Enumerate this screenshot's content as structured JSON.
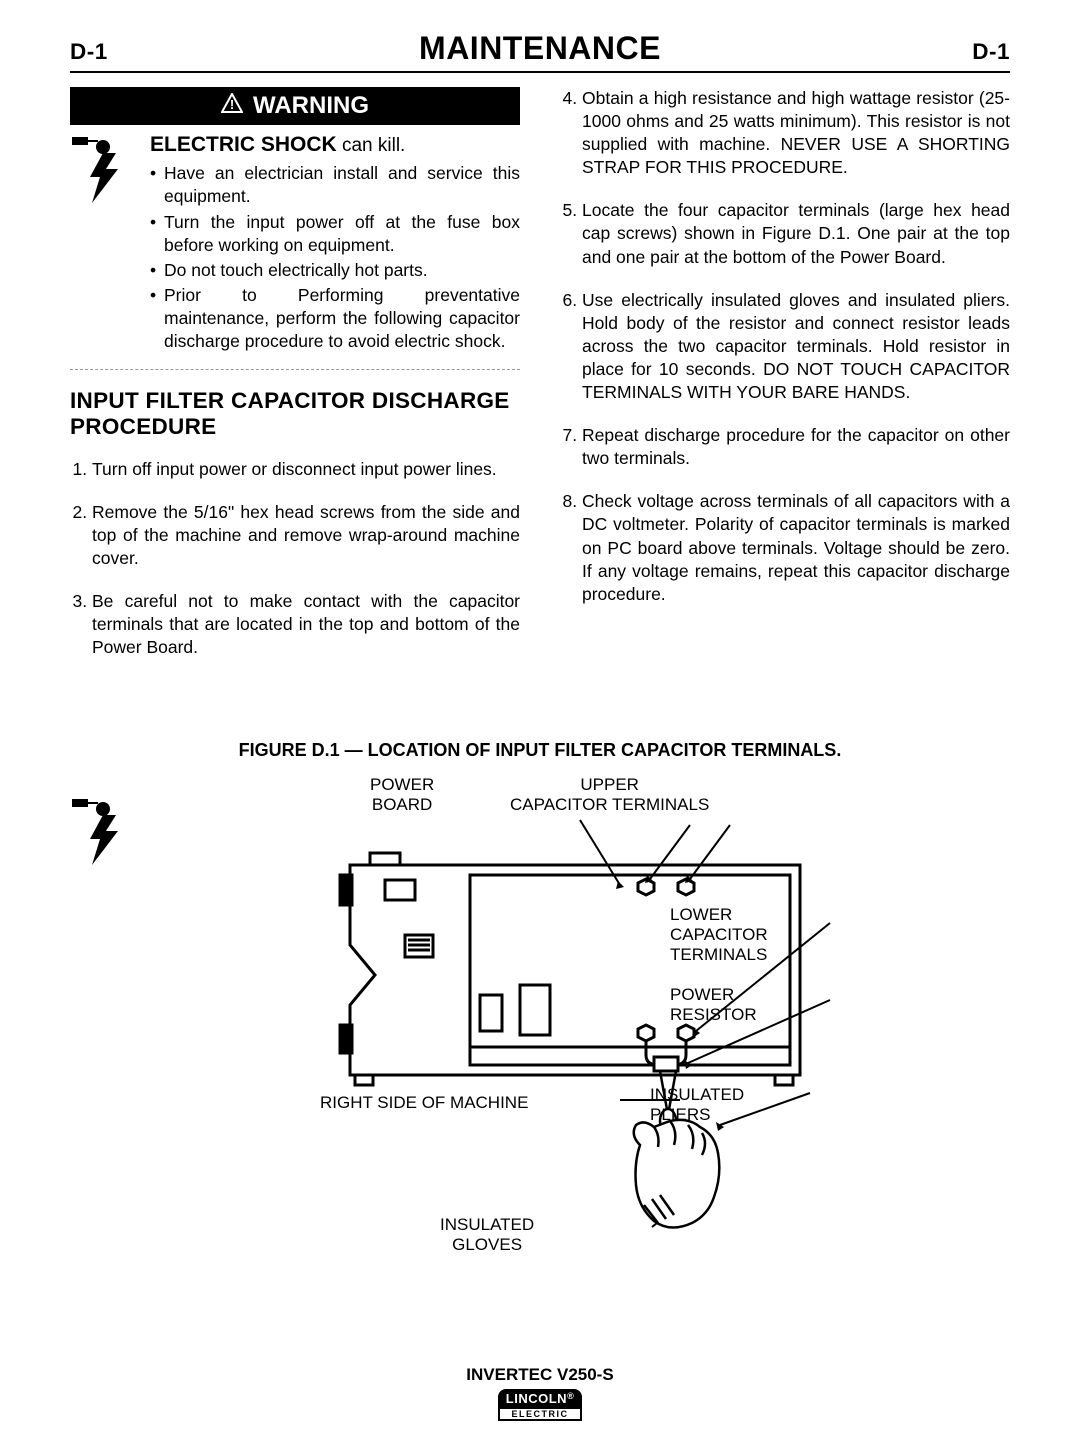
{
  "header": {
    "left_code": "D-1",
    "title": "MAINTENANCE",
    "right_code": "D-1"
  },
  "warning": {
    "bar_text": "WARNING",
    "shock_title_bold": "ELECTRIC SHOCK",
    "shock_title_rest": " can kill.",
    "bullets": [
      "Have an electrician install and service this equipment.",
      "Turn the input power off at the fuse box before working on equipment.",
      "Do not touch electrically hot parts.",
      "Prior to Performing preventative maintenance, perform the following capacitor discharge procedure to avoid electric shock."
    ]
  },
  "procedure": {
    "title": "INPUT FILTER CAPACITOR DISCHARGE PROCEDURE",
    "steps_left": [
      "Turn off input power or disconnect input power lines.",
      "Remove the 5/16\" hex head screws from the side and top of the machine and remove wrap-around machine cover.",
      "Be careful not to make contact with the capacitor terminals that are located in the top and bottom of the Power Board."
    ],
    "steps_right": [
      "Obtain a high resistance and high wattage resistor (25-1000 ohms and 25 watts minimum). This resistor is not supplied with machine. NEVER USE A SHORTING STRAP FOR THIS PROCEDURE.",
      "Locate the four capacitor terminals (large hex head cap screws) shown in Figure D.1.  One pair at the top and one pair at the bottom of the Power Board.",
      "Use electrically insulated gloves and insulated pliers. Hold body of the resistor and connect resistor leads across the two capacitor terminals. Hold resistor in place for 10 seconds. DO NOT TOUCH CAPACITOR TERMINALS WITH YOUR BARE HANDS.",
      "Repeat discharge procedure for the capacitor on other two terminals.",
      "Check voltage across terminals of all capacitors with a DC voltmeter. Polarity of capacitor terminals is marked on PC board above terminals. Voltage should be zero. If any voltage remains, repeat this capacitor discharge procedure."
    ]
  },
  "figure": {
    "caption": "FIGURE D.1 — LOCATION OF INPUT FILTER CAPACITOR TERMINALS.",
    "labels": {
      "power_board": "POWER\nBOARD",
      "upper_caps": "UPPER\nCAPACITOR TERMINALS",
      "lower_caps": "LOWER\nCAPACITOR\nTERMINALS",
      "power_resistor": "POWER\nRESISTOR",
      "right_side": "RIGHT SIDE OF MACHINE",
      "insulated_pliers": "INSULATED\nPLIERS",
      "insulated_gloves": "INSULATED\nGLOVES"
    },
    "diagram": {
      "stroke": "#000000",
      "stroke_width": 3,
      "bg": "#ffffff"
    }
  },
  "footer": {
    "model": "INVERTEC V250-S",
    "brand_top": "LINCOLN",
    "brand_reg": "®",
    "brand_bottom": "ELECTRIC"
  }
}
